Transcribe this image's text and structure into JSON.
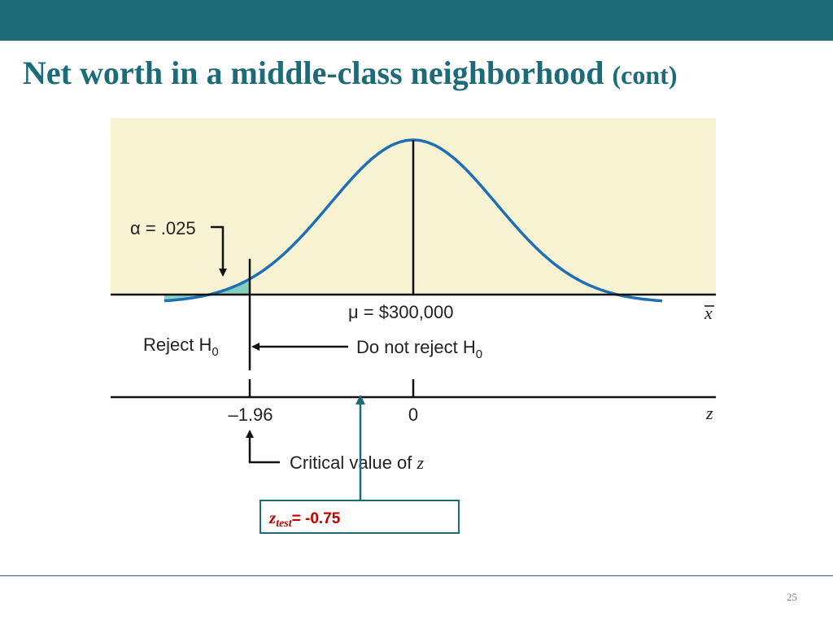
{
  "slide": {
    "title_main": "Net worth in a middle-class neighborhood",
    "title_suffix": "(cont)",
    "page_number": "25"
  },
  "figure": {
    "alpha_label": "α = .025",
    "mu_label": "μ = $300,000",
    "xbar_label": "x",
    "reject_label": "Reject H",
    "do_not_reject_label": "Do not reject H",
    "h_subscript": "0",
    "z_axis_label": "z",
    "tick_critical": "–1.96",
    "tick_zero": "0",
    "critical_caption": "Critical value of",
    "critical_caption_var": "z"
  },
  "callout": {
    "symbol": "z",
    "subscript": "test",
    "value_text": "= -0.75"
  },
  "colors": {
    "header": "#1b6b78",
    "panel": "#f7f3d2",
    "curve": "#1f6fb4",
    "tail_fill": "#5ec3b3",
    "callout_text": "#c00000"
  }
}
